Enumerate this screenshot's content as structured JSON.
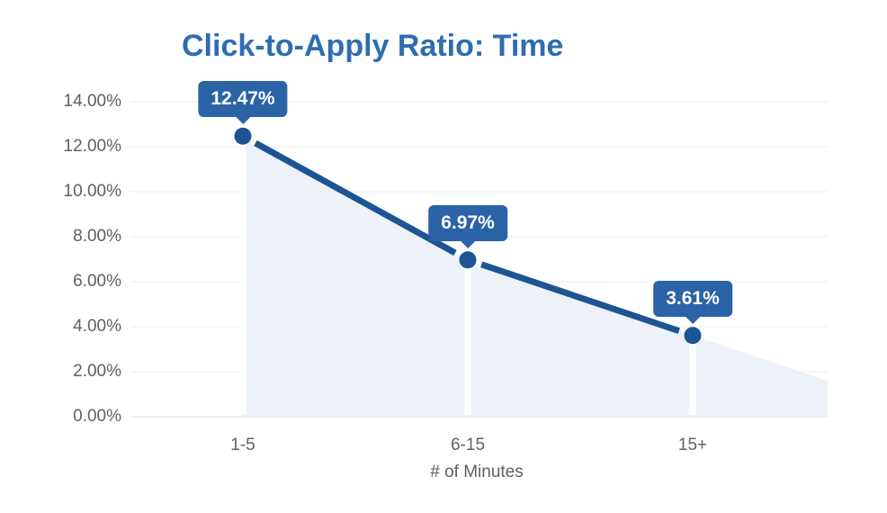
{
  "chart_data": {
    "type": "area",
    "title": "Click-to-Apply Ratio: Time",
    "xlabel": "# of Minutes",
    "ylabel": "",
    "categories": [
      "1-5",
      "6-15",
      "15+"
    ],
    "series": [
      {
        "name": "Click-to-Apply Ratio",
        "values": [
          12.47,
          6.97,
          3.61
        ]
      }
    ],
    "point_labels": [
      "12.47%",
      "6.97%",
      "3.61%"
    ],
    "ylim": [
      0,
      14
    ],
    "y_tick_step": 2,
    "y_ticks": [
      {
        "value": 14,
        "label": "14.00%"
      },
      {
        "value": 12,
        "label": "12.00%"
      },
      {
        "value": 10,
        "label": "10.00%"
      },
      {
        "value": 8,
        "label": "8.00%"
      },
      {
        "value": 6,
        "label": "6.00%"
      },
      {
        "value": 4,
        "label": "4.00%"
      },
      {
        "value": 2,
        "label": "2.00%"
      },
      {
        "value": 0,
        "label": "0.00%"
      }
    ],
    "grid": true,
    "legend": false,
    "layout_hints": "area fill starts at first point and extends past last point to right plot edge; white column highlight under each marker",
    "colors": {
      "title": "#2f6db1",
      "line": "#1d5493",
      "marker": "#1d5493",
      "area_fill": "#edf1f8",
      "tooltip_bg": "#2a63a6",
      "tooltip_text": "#ffffff",
      "axis_text": "#606060",
      "gridline": "#ededed",
      "axis_line": "#e2e2e2",
      "background": "#ffffff"
    }
  }
}
